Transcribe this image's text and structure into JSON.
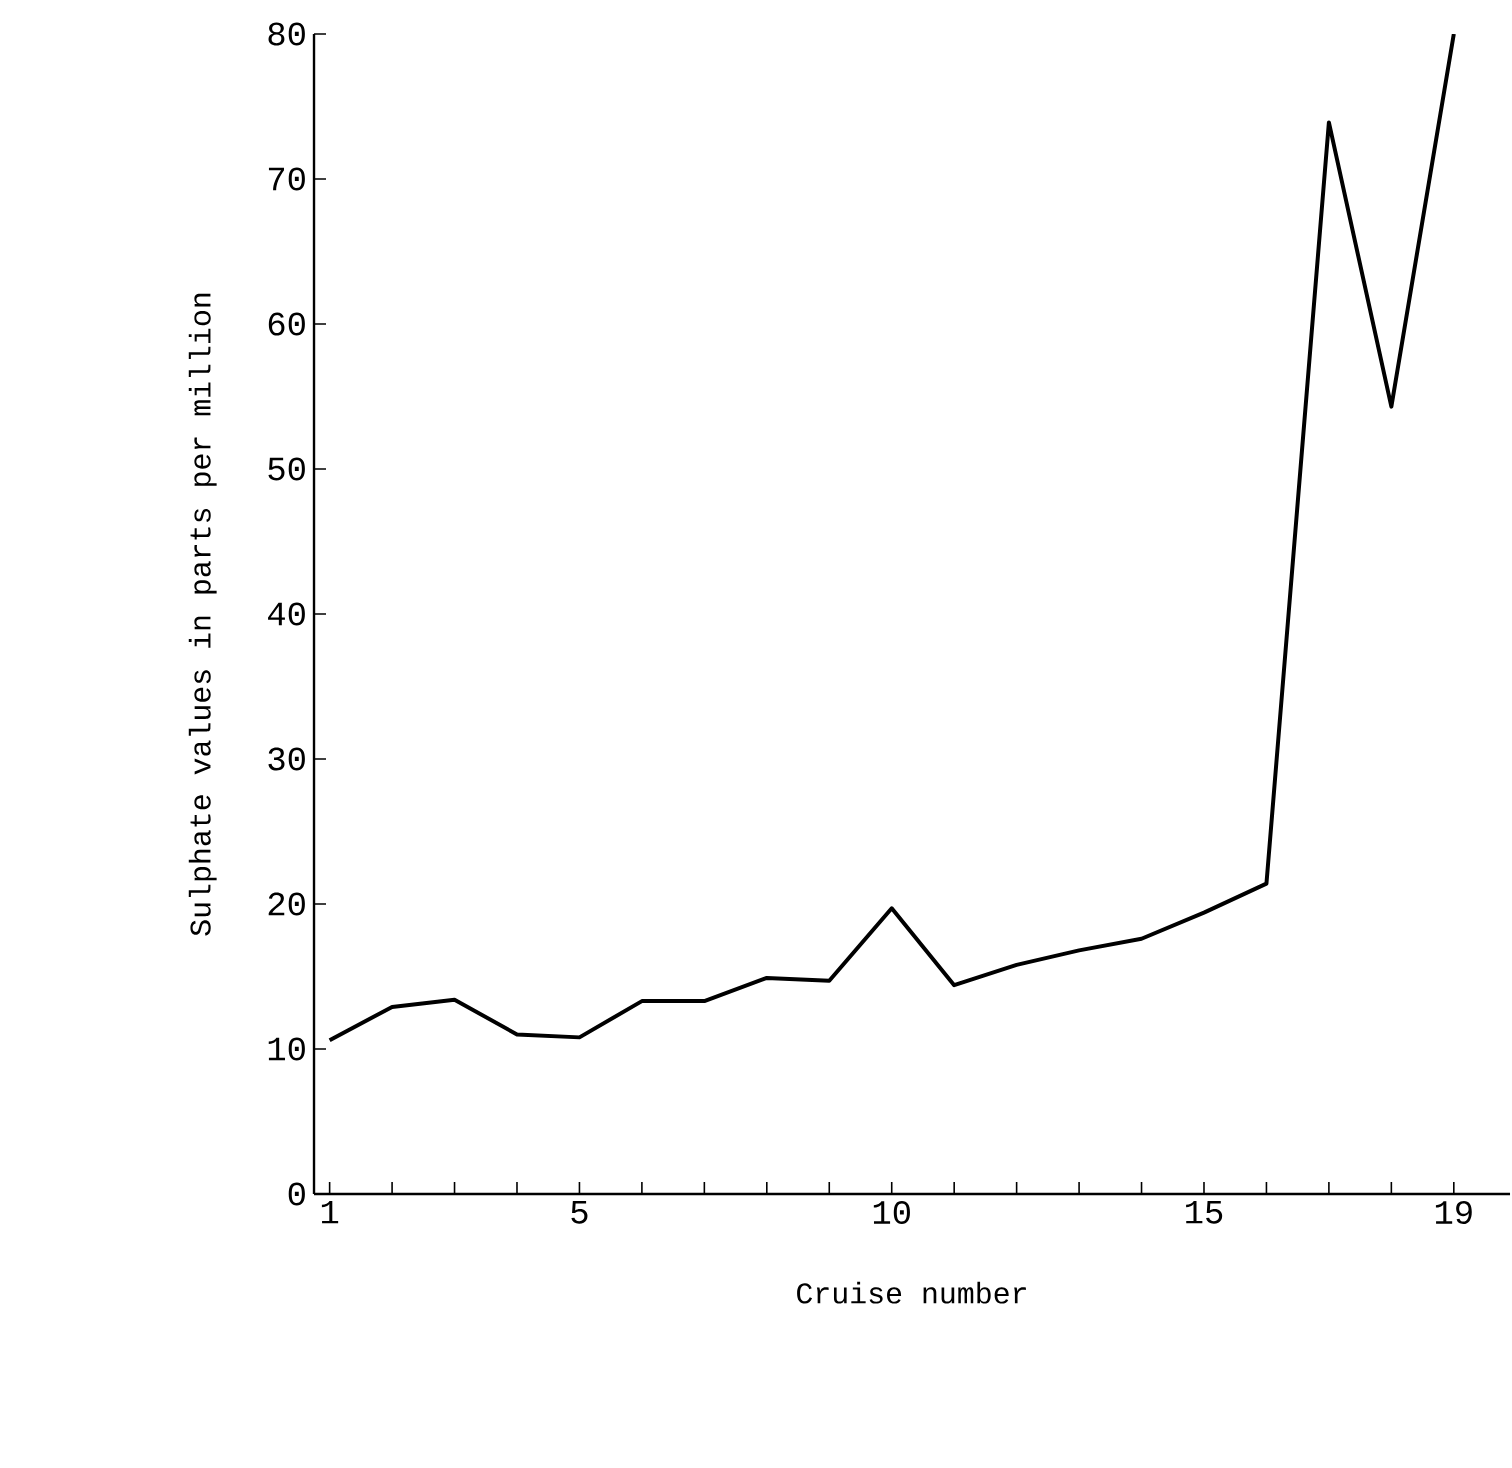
{
  "chart_data": {
    "type": "line",
    "xlabel": "Cruise number",
    "ylabel": "Sulphate values in parts per million",
    "x": [
      1,
      2,
      3,
      4,
      5,
      6,
      7,
      8,
      9,
      10,
      11,
      12,
      13,
      14,
      15,
      16,
      17,
      18,
      19
    ],
    "values": [
      10.6,
      12.9,
      13.4,
      11.0,
      10.8,
      13.3,
      13.3,
      14.9,
      14.7,
      19.7,
      14.4,
      15.8,
      16.8,
      17.6,
      19.4,
      21.4,
      73.9,
      54.3,
      80
    ],
    "color": "#000000",
    "xlim": [
      0.75,
      19.9
    ],
    "ylim": [
      0,
      80
    ],
    "xticks": [
      1,
      {
        "value": 2,
        "label": null
      },
      {
        "value": 3,
        "label": null
      },
      {
        "value": 4,
        "label": null
      },
      5,
      {
        "value": 6,
        "label": null
      },
      {
        "value": 7,
        "label": null
      },
      {
        "value": 8,
        "label": null
      },
      {
        "value": 9,
        "label": null
      },
      10,
      {
        "value": 11,
        "label": null
      },
      {
        "value": 12,
        "label": null
      },
      {
        "value": 13,
        "label": null
      },
      {
        "value": 14,
        "label": null
      },
      15,
      {
        "value": 16,
        "label": null
      },
      {
        "value": 17,
        "label": null
      },
      {
        "value": 18,
        "label": null
      },
      19
    ],
    "yticks": [
      0,
      10,
      20,
      30,
      40,
      50,
      60,
      70,
      80
    ],
    "marker": "none",
    "line_style": "solid"
  }
}
